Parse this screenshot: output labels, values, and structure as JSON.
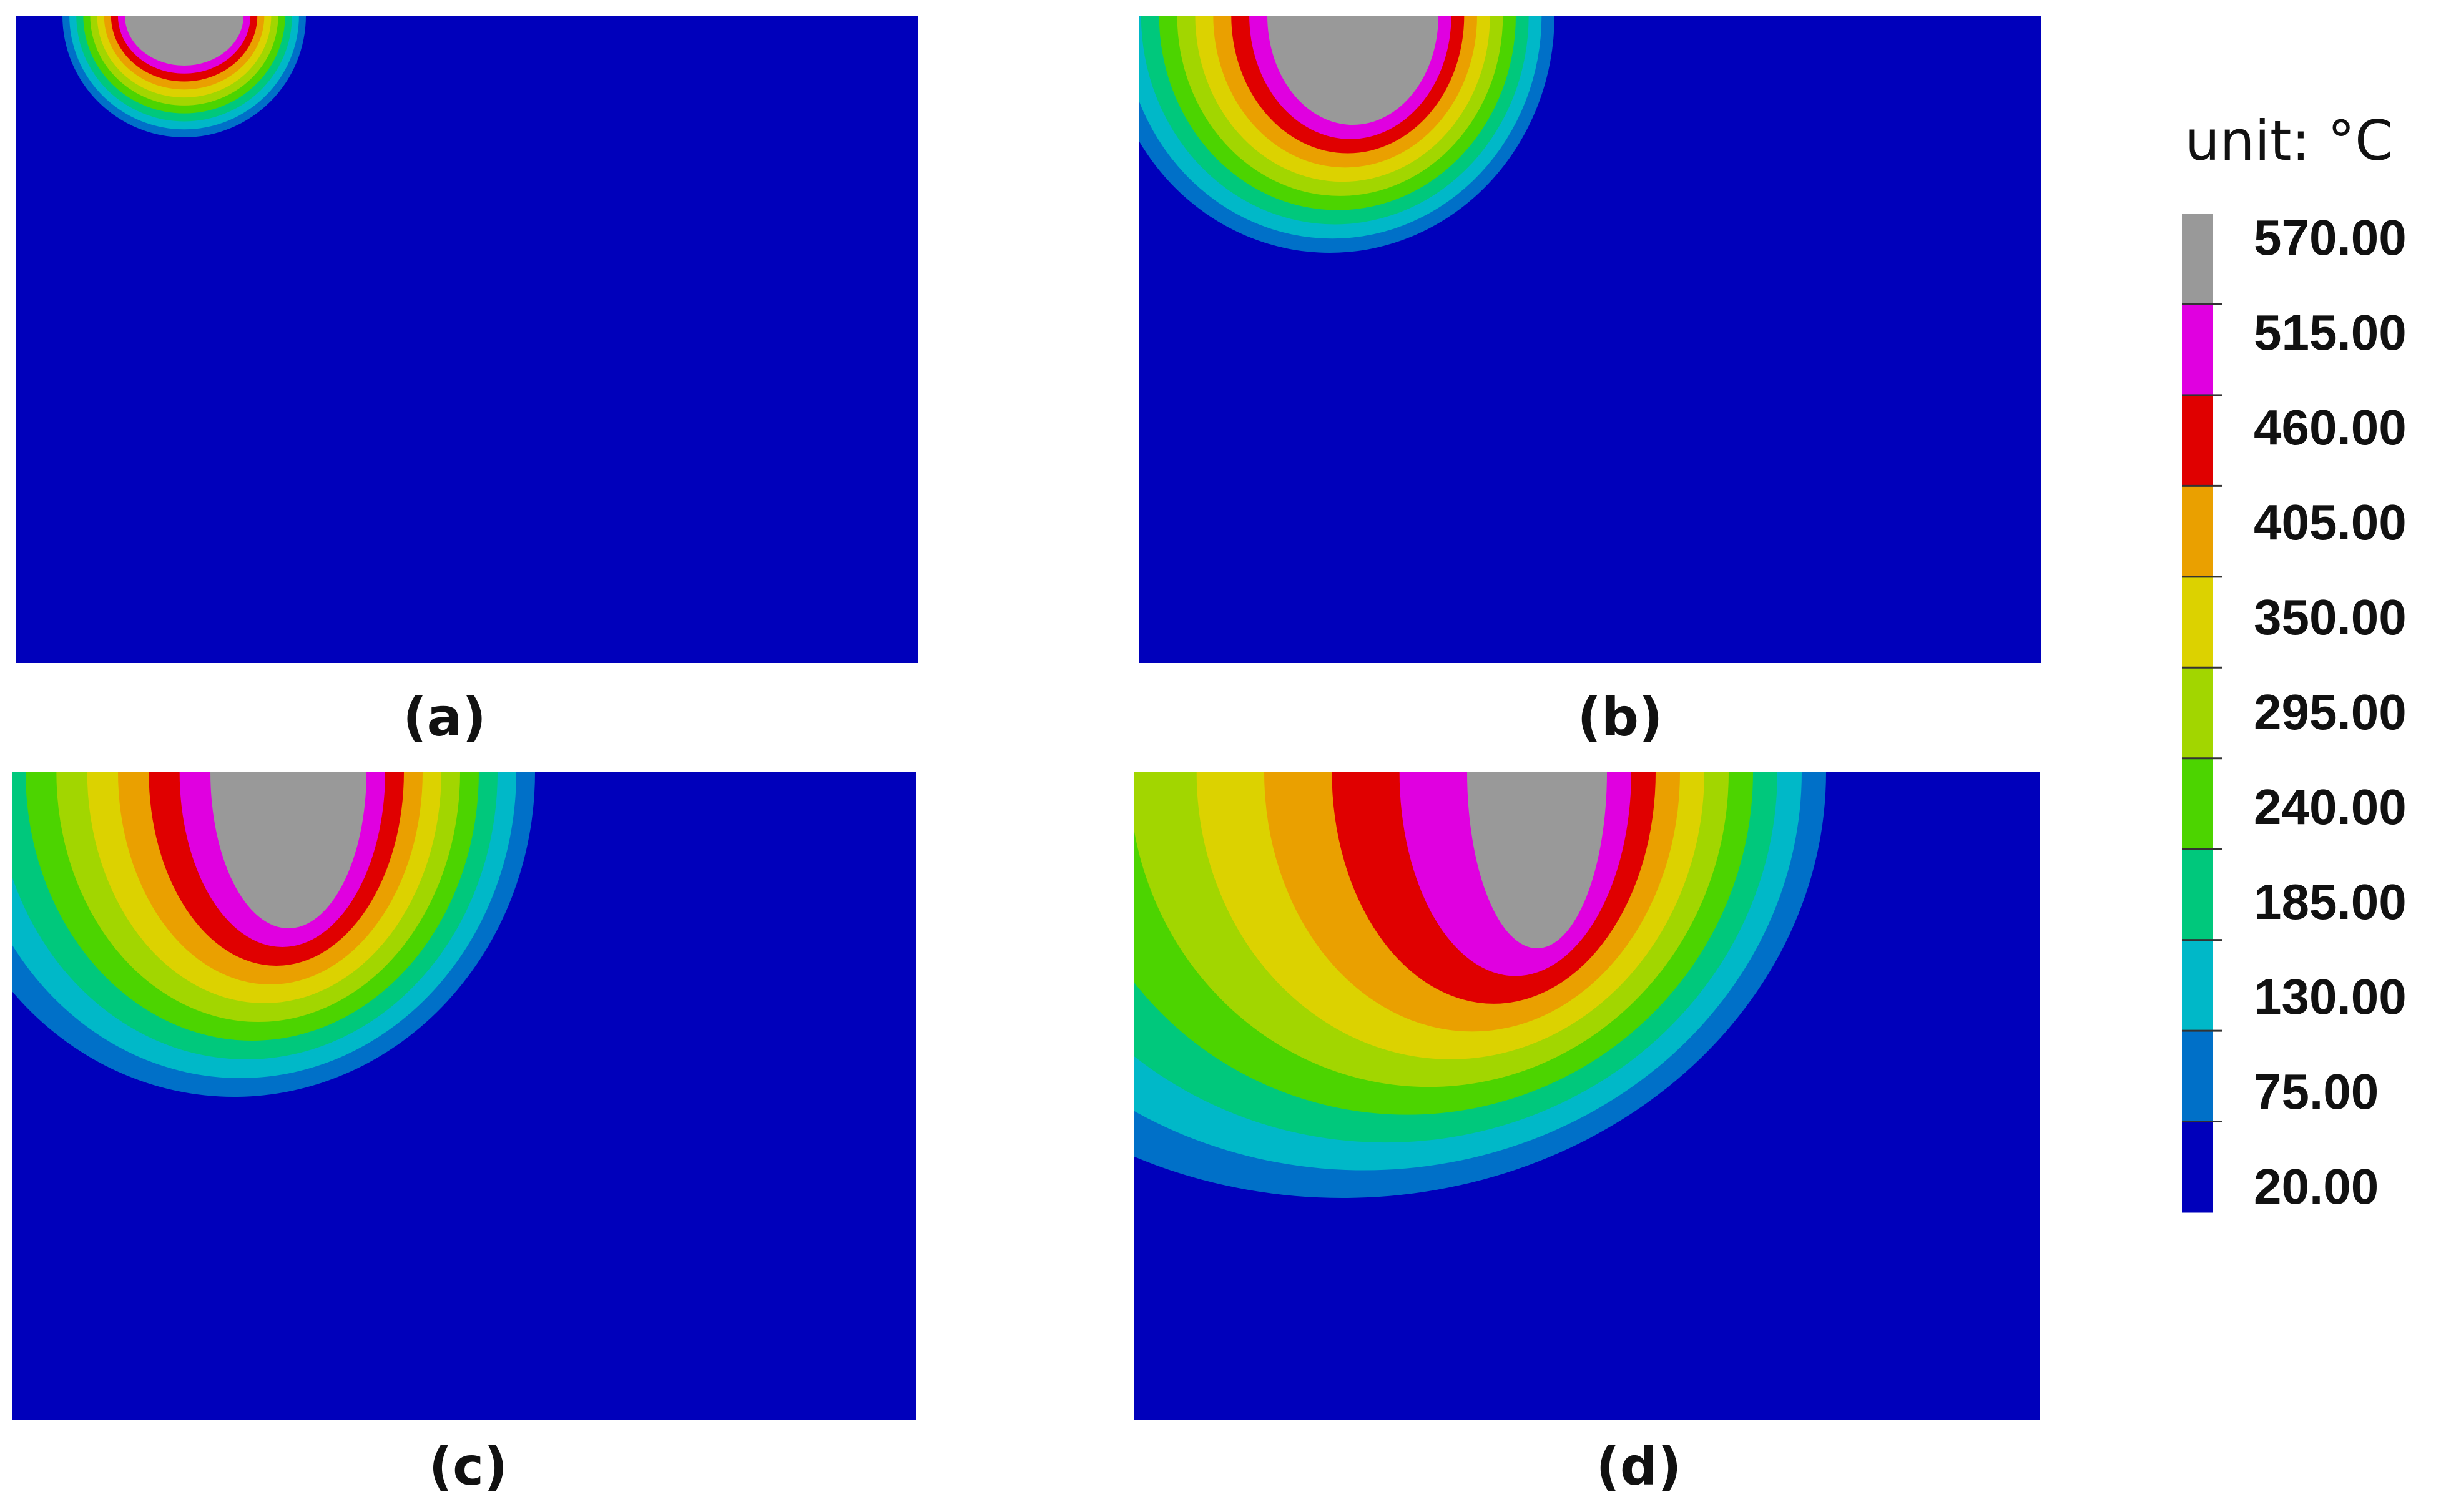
{
  "panels": [
    {
      "label": "(a)"
    },
    {
      "label": "(b)"
    },
    {
      "label": "(c)"
    },
    {
      "label": "(d)"
    }
  ],
  "legend": {
    "title": "unit: °C",
    "labels": [
      "570.00",
      "515.00",
      "460.00",
      "405.00",
      "350.00",
      "295.00",
      "240.00",
      "185.00",
      "130.00",
      "75.00",
      "20.00"
    ]
  }
}
